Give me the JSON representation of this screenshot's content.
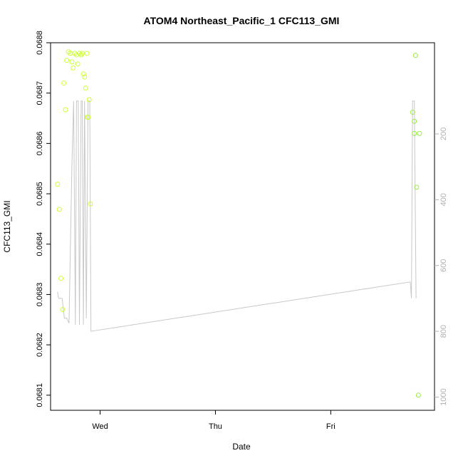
{
  "chart_data": {
    "type": "scatter",
    "title": "ATOM4 Northeast_Pacific_1 CFC113_GMI",
    "xlabel": "Date",
    "ylabel": "CFC113_GMI",
    "x_ticks": [
      "Wed",
      "Thu",
      "Fri"
    ],
    "y_ticks": [
      "0.0681",
      "0.0682",
      "0.0683",
      "0.0684",
      "0.0685",
      "0.0686",
      "0.0687",
      "0.0688"
    ],
    "y_right_ticks": [
      "200",
      "400",
      "600",
      "800",
      "1000"
    ],
    "ylim": [
      0.06807,
      0.0688
    ],
    "y_right_lim": [
      -77,
      1040
    ],
    "xlim": [
      -0.43,
      2.9
    ],
    "colors": {
      "series_early": "#ccff33",
      "series_late": "#99ee44",
      "pressure_line": "#c8c8c8",
      "axis": "#000000",
      "right_axis": "#b0b0b0"
    },
    "series": [
      {
        "values": [
          [
            -0.37,
            0.068519
          ],
          [
            -0.355,
            0.068469
          ],
          [
            -0.34,
            0.068332
          ],
          [
            -0.325,
            0.06827
          ],
          [
            -0.315,
            0.06872
          ],
          [
            -0.3,
            0.068667
          ],
          [
            -0.29,
            0.068765
          ],
          [
            -0.275,
            0.068782
          ],
          [
            -0.26,
            0.068779
          ],
          [
            -0.245,
            0.068762
          ],
          [
            -0.235,
            0.06875
          ],
          [
            -0.22,
            0.068779
          ],
          [
            -0.205,
            0.068776
          ],
          [
            -0.195,
            0.068758
          ],
          [
            -0.18,
            0.068779
          ],
          [
            -0.165,
            0.068776
          ],
          [
            -0.155,
            0.068779
          ],
          [
            -0.145,
            0.068738
          ],
          [
            -0.135,
            0.068732
          ],
          [
            -0.125,
            0.06871
          ],
          [
            -0.115,
            0.068779
          ],
          [
            -0.11,
            0.068652
          ],
          [
            -0.105,
            0.068652
          ],
          [
            -0.095,
            0.068687
          ],
          [
            -0.085,
            0.06848
          ],
          [
            2.71,
            0.068662
          ],
          [
            2.725,
            0.068644
          ],
          [
            2.735,
            0.068775
          ],
          [
            2.725,
            0.06862
          ],
          [
            2.745,
            0.068513
          ],
          [
            2.77,
            0.06862
          ],
          [
            2.76,
            0.0681
          ]
        ]
      }
    ],
    "pressure_line": [
      [
        -0.37,
        680
      ],
      [
        -0.36,
        700
      ],
      [
        -0.33,
        700
      ],
      [
        -0.31,
        760
      ],
      [
        -0.29,
        760
      ],
      [
        -0.27,
        775
      ],
      [
        -0.245,
        300
      ],
      [
        -0.23,
        100
      ],
      [
        -0.215,
        780
      ],
      [
        -0.205,
        100
      ],
      [
        -0.19,
        100
      ],
      [
        -0.18,
        780
      ],
      [
        -0.165,
        100
      ],
      [
        -0.155,
        100
      ],
      [
        -0.145,
        780
      ],
      [
        -0.135,
        100
      ],
      [
        -0.12,
        760
      ],
      [
        -0.105,
        100
      ],
      [
        -0.09,
        100
      ],
      [
        -0.08,
        800
      ],
      [
        2.69,
        650
      ],
      [
        2.7,
        700
      ],
      [
        2.71,
        100
      ],
      [
        2.725,
        100
      ],
      [
        2.74,
        700
      ]
    ]
  }
}
